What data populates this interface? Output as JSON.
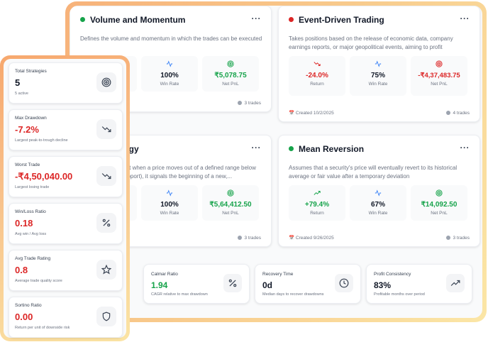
{
  "strategies": [
    {
      "title": "Volume and Momentum",
      "status_color": "#16a34a",
      "more": "···",
      "description": "Defines the volume and momentum in which the trades can be executed",
      "stats": [
        {
          "icon": "target-icon",
          "value": "",
          "label": ""
        },
        {
          "icon": "activity-icon",
          "value": "100%",
          "label": "Win Rate"
        },
        {
          "icon": "target-icon",
          "value": "₹5,078.75",
          "label": "Net PnL"
        }
      ],
      "trades": "3 trades",
      "created": ""
    },
    {
      "title": "Event-Driven Trading",
      "status_color": "#dc2626",
      "more": "···",
      "description": "Takes positions based on the release of economic data, company earnings reports, or major geopolitical events, aiming to profit",
      "stats": [
        {
          "icon": "trending-down-icon",
          "value": "-24.0%",
          "label": "Return"
        },
        {
          "icon": "activity-icon",
          "value": "75%",
          "label": "Win Rate"
        },
        {
          "icon": "target-icon",
          "value": "-₹4,37,483.75",
          "label": "Net PnL"
        }
      ],
      "trades": "4 trades",
      "created": "Created 10/2/2025"
    },
    {
      "title": "tegy",
      "status_color": "",
      "more": "···",
      "description": "that when a price moves out of a defined range below support), it signals the beginning of a new,...",
      "stats": [
        {
          "icon": "",
          "value": "",
          "label": ""
        },
        {
          "icon": "activity-icon",
          "value": "100%",
          "label": "Win Rate"
        },
        {
          "icon": "target-icon",
          "value": "₹5,64,412.50",
          "label": "Net PnL"
        }
      ],
      "trades": "3 trades",
      "created": ""
    },
    {
      "title": "Mean Reversion",
      "status_color": "#16a34a",
      "more": "···",
      "description": "Assumes that a security's price will eventually revert to its historical average or fair value after a temporary deviation",
      "stats": [
        {
          "icon": "trending-up-icon",
          "value": "+79.4%",
          "label": "Return"
        },
        {
          "icon": "activity-icon",
          "value": "67%",
          "label": "Win Rate"
        },
        {
          "icon": "target-icon",
          "value": "₹14,092.50",
          "label": "Net PnL"
        }
      ],
      "trades": "3 trades",
      "created": "Created 9/26/2025"
    }
  ],
  "bottom_metrics": [
    {
      "label": "Calmar Ratio",
      "value": "1.94",
      "sub": "CAGR relative to max drawdown",
      "icon": "percent-icon"
    },
    {
      "label": "Recovery Time",
      "value": "0d",
      "sub": "Median days to recover drawdowns",
      "icon": "clock-icon"
    },
    {
      "label": "Profit Consistency",
      "value": "83%",
      "sub": "Profitable months over period",
      "icon": "trending-up-icon"
    }
  ],
  "side_metrics": [
    {
      "label": "Total Strategies",
      "value": "5",
      "sub": "5 active",
      "icon": "target-icon",
      "color": "#111827"
    },
    {
      "label": "Max Drawdown",
      "value": "-7.2%",
      "sub": "Largest peak-to-trough decline",
      "icon": "trending-down-icon",
      "color": "#dc2626"
    },
    {
      "label": "Worst Trade",
      "value": "-₹4,50,040.00",
      "sub": "Largest losing trade",
      "icon": "trending-down-icon",
      "color": "#dc2626"
    },
    {
      "label": "Win/Loss Ratio",
      "value": "0.18",
      "sub": "Avg win / Avg loss",
      "icon": "percent-icon",
      "color": "#dc2626"
    },
    {
      "label": "Avg Trade Rating",
      "value": "0.8",
      "sub": "Average trade quality score",
      "icon": "star-icon",
      "color": "#dc2626"
    },
    {
      "label": "Sortino Ratio",
      "value": "0.00",
      "sub": "Return per unit of downside risk",
      "icon": "shield-icon",
      "color": "#dc2626"
    }
  ]
}
